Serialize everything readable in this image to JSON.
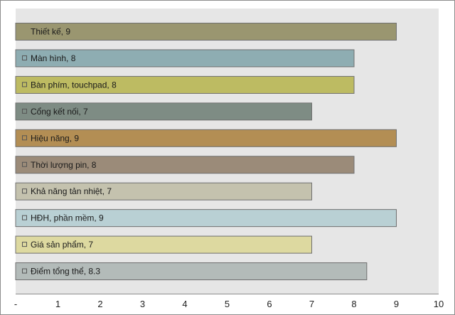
{
  "chart_data": {
    "type": "bar",
    "orientation": "horizontal",
    "title": "",
    "xlabel": "",
    "ylabel": "",
    "xlim": [
      0,
      10
    ],
    "x_tick_labels": [
      "-",
      "1",
      "2",
      "3",
      "4",
      "5",
      "6",
      "7",
      "8",
      "9",
      "10"
    ],
    "grid": false,
    "legend": "none",
    "categories": [
      "Thiết kế",
      "Màn hình",
      "Bàn phím, touchpad",
      "Cổng kết nối",
      "Hiệu năng",
      "Thời lượng pin",
      "Khả năng tản nhiệt",
      "HĐH, phần mềm",
      "Giá sản phẩm",
      "Điểm tổng thể"
    ],
    "values": [
      9,
      8,
      8,
      7,
      9,
      8,
      7,
      9,
      7,
      8.3
    ],
    "data_labels": [
      "Thiết kế, 9",
      "Màn hình, 8",
      "Bàn phím, touchpad, 8",
      "Cổng kết nối, 7",
      "Hiệu năng, 9",
      "Thời lượng pin, 8",
      "Khả năng tản nhiệt, 7",
      "HĐH, phần mềm, 9",
      "Giá sản phẩm, 7",
      "Điểm tổng thể, 8.3"
    ],
    "colors": [
      "#9a9670",
      "#8eadb2",
      "#bdbb62",
      "#7e8c84",
      "#b38e54",
      "#9b8b79",
      "#c4c2ae",
      "#b9d0d4",
      "#ddd9a0",
      "#b3bbb9"
    ],
    "first_bar_marker": false
  }
}
